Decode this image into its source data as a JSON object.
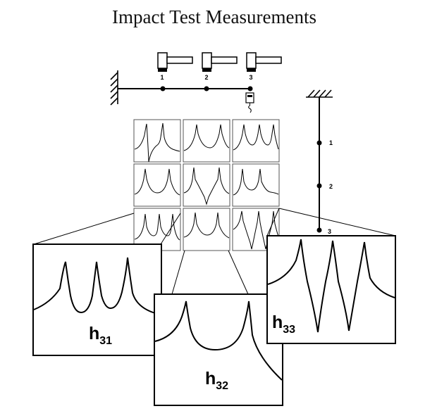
{
  "title": "Impact Test Measurements",
  "hammer_labels": [
    "1",
    "2",
    "3"
  ],
  "accelerometer_point_labels": [
    "1",
    "2",
    "3"
  ],
  "frf_matrix": {
    "rows": 3,
    "cols": 3,
    "highlighted_row": 3
  },
  "zoomed_frfs": [
    {
      "name": "h",
      "subscript": "31"
    },
    {
      "name": "h",
      "subscript": "32"
    },
    {
      "name": "h",
      "subscript": "33"
    }
  ],
  "colors": {
    "line": "#000000",
    "background": "#ffffff",
    "small_frame": "#555555"
  }
}
